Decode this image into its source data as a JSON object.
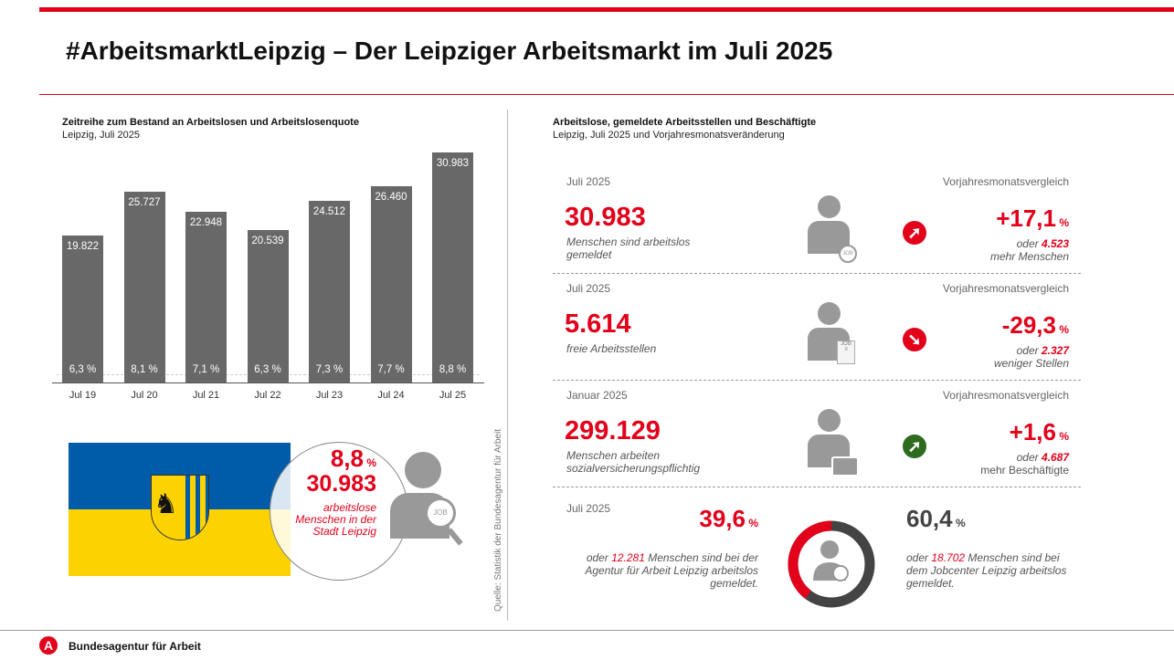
{
  "header": {
    "title": "#ArbeitsmarktLeipzig – Der Leipziger Arbeitsmarkt im Juli 2025"
  },
  "colors": {
    "accent": "#e2001a",
    "bar": "#686868",
    "positive": "#2e6b1e",
    "flag_blue": "#005ca9",
    "flag_yellow": "#fcd200"
  },
  "chart_data": {
    "type": "bar",
    "title": "Zeitreihe zum Bestand an Arbeitslosen und Arbeitslosenquote",
    "subtitle": "Leipzig, Juli 2025",
    "categories": [
      "Jul 19",
      "Jul 20",
      "Jul 21",
      "Jul 22",
      "Jul 23",
      "Jul 24",
      "Jul 25"
    ],
    "values": [
      19822,
      25727,
      22948,
      20539,
      24512,
      26460,
      30983
    ],
    "value_labels": [
      "19.822",
      "25.727",
      "22.948",
      "20.539",
      "24.512",
      "26.460",
      "30.983"
    ],
    "rate_labels": [
      "6,3 %",
      "8,1 %",
      "7,1 %",
      "6,3 %",
      "7,3 %",
      "7,7 %",
      "8,8 %"
    ],
    "ylim": [
      0,
      32000
    ],
    "grid": false
  },
  "flag_box": {
    "rate": "8,8",
    "rate_unit": "%",
    "count": "30.983",
    "text": "arbeitslose Menschen in der Stadt Leipzig",
    "icon": "job-search-person-icon"
  },
  "source": "Quelle: Statistik der Bundesagentur für Arbeit",
  "right": {
    "title": "Arbeitslose, gemeldete Arbeitsstellen und Beschäftigte",
    "subtitle": "Leipzig, Juli 2025 und Vorjahresmonatsveränderung",
    "rows": [
      {
        "period": "Juli 2025",
        "compare": "Vorjahresmonatsvergleich",
        "value": "30.983",
        "desc": "Menschen sind arbeitslos gemeldet",
        "change": "+17,1",
        "unit": "%",
        "oder": "oder",
        "abs": "4.523",
        "abs_text": "mehr Menschen",
        "direction": "up",
        "arrow_color": "#e2001a",
        "icon": "job-search-person-icon"
      },
      {
        "period": "Juli 2025",
        "compare": "Vorjahresmonatsvergleich",
        "value": "5.614",
        "desc": "freie Arbeitsstellen",
        "change": "-29,3",
        "unit": "%",
        "oder": "oder",
        "abs": "2.327",
        "abs_text": "weniger Stellen",
        "direction": "down",
        "arrow_color": "#e2001a",
        "icon": "job-document-person-icon"
      },
      {
        "period": "Januar 2025",
        "compare": "Vorjahresmonatsvergleich",
        "value": "299.129",
        "desc": "Menschen arbeiten sozialversicherungspflichtig",
        "change": "+1,6",
        "unit": "%",
        "oder": "oder",
        "abs": "4.687",
        "abs_text": "mehr Beschäftigte",
        "direction": "up",
        "arrow_color": "#2e6b1e",
        "icon": "briefcase-person-icon"
      }
    ],
    "split": {
      "period": "Juli 2025",
      "left": {
        "pct": "39,6",
        "value": 39.6,
        "unit": "%",
        "pre": "oder",
        "num": "12.281",
        "text": "Menschen sind bei der Agentur für Arbeit Leipzig arbeitslos gemeldet."
      },
      "right": {
        "pct": "60,4",
        "value": 60.4,
        "unit": "%",
        "pre": "oder",
        "num": "18.702",
        "text": "Menschen sind bei dem Jobcenter Leipzig arbeitslos gemeldet."
      }
    }
  },
  "footer": {
    "org": "Bundesagentur für Arbeit",
    "logo_letter": "A"
  }
}
